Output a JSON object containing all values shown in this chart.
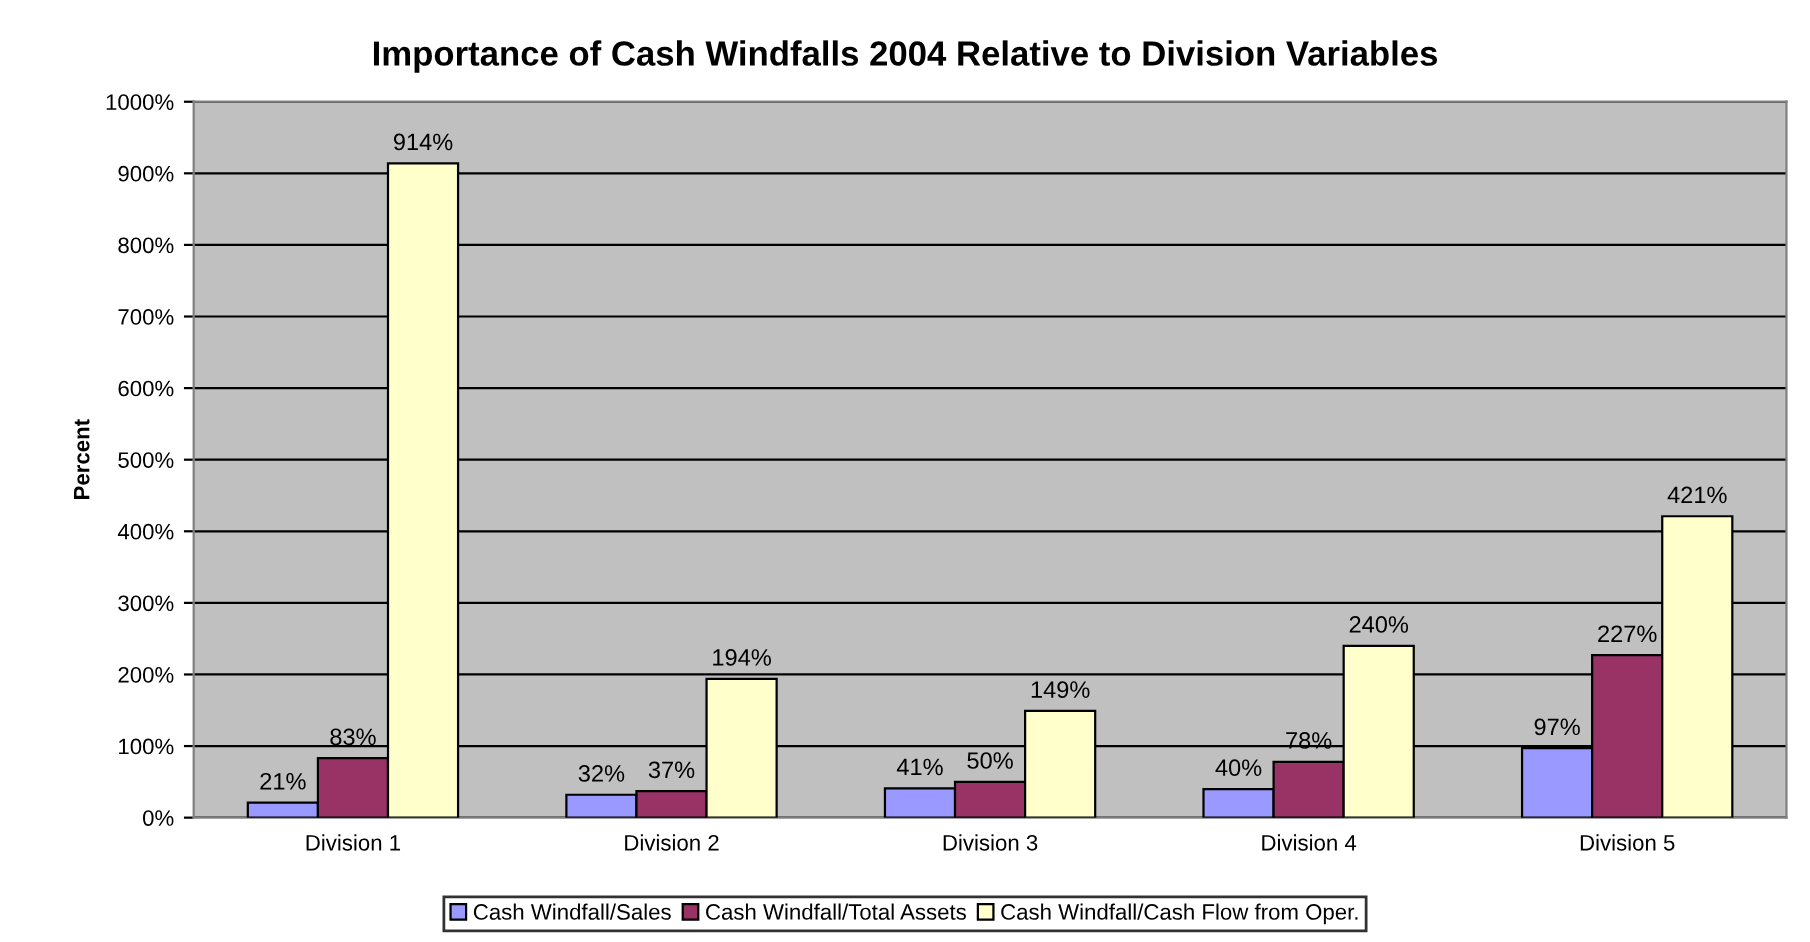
{
  "chart_data": {
    "type": "bar",
    "title": "Importance of Cash Windfalls 2004 Relative to Division Variables",
    "ylabel": "Percent",
    "categories": [
      "Division 1",
      "Division 2",
      "Division 3",
      "Division 4",
      "Division 5"
    ],
    "series": [
      {
        "name": "Cash Windfall/Sales",
        "color": "#9999ff",
        "values": [
          21,
          32,
          41,
          40,
          97
        ],
        "value_labels": [
          "21%",
          "32%",
          "41%",
          "40%",
          "97%"
        ]
      },
      {
        "name": "Cash Windfall/Total Assets",
        "color": "#993366",
        "values": [
          83,
          37,
          50,
          78,
          227
        ],
        "value_labels": [
          "83%",
          "37%",
          "50%",
          "78%",
          "227%"
        ]
      },
      {
        "name": "Cash Windfall/Cash Flow from Oper.",
        "color": "#ffffcc",
        "values": [
          914,
          194,
          149,
          240,
          421
        ],
        "value_labels": [
          "914%",
          "194%",
          "149%",
          "240%",
          "421%"
        ]
      }
    ],
    "ylim": [
      0,
      1000
    ],
    "yticks": [
      {
        "value": 0,
        "label": "0%"
      },
      {
        "value": 100,
        "label": "100%"
      },
      {
        "value": 200,
        "label": "200%"
      },
      {
        "value": 300,
        "label": "300%"
      },
      {
        "value": 400,
        "label": "400%"
      },
      {
        "value": 500,
        "label": "500%"
      },
      {
        "value": 600,
        "label": "600%"
      },
      {
        "value": 700,
        "label": "700%"
      },
      {
        "value": 800,
        "label": "800%"
      },
      {
        "value": 900,
        "label": "900%"
      },
      {
        "value": 1000,
        "label": "1000%"
      }
    ],
    "grid": "y",
    "legend": "bottom"
  }
}
